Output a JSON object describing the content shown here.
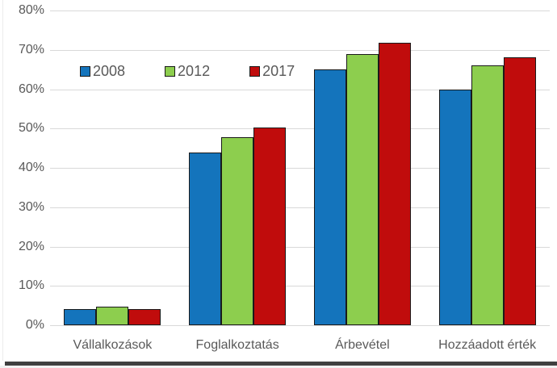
{
  "chart_data": {
    "type": "bar",
    "title": "",
    "xlabel": "",
    "ylabel": "",
    "categories": [
      "Vállalkozások",
      "Foglalkoztatás",
      "Árbevétel",
      "Hozzáadott érték"
    ],
    "series": [
      {
        "name": "2008",
        "color": "#1474bc",
        "values": [
          4.2,
          44.0,
          65.0,
          60.0
        ]
      },
      {
        "name": "2012",
        "color": "#8dce4e",
        "values": [
          4.7,
          47.8,
          69.0,
          66.0
        ]
      },
      {
        "name": "2017",
        "color": "#c00c0c",
        "values": [
          4.1,
          50.2,
          71.8,
          68.2
        ]
      }
    ],
    "ylim": [
      0,
      80
    ],
    "yticks": [
      0,
      10,
      20,
      30,
      40,
      50,
      60,
      70,
      80
    ],
    "ytick_labels": [
      "0%",
      "10%",
      "20%",
      "30%",
      "40%",
      "50%",
      "60%",
      "70%",
      "80%"
    ],
    "grid": true,
    "legend_position": "inside-top-left"
  },
  "colors": {
    "bar_border": "#1a1a1a",
    "gridline": "#d9d9d9",
    "axis_text": "#595959",
    "bottom_strip": "#3f3f3f"
  }
}
